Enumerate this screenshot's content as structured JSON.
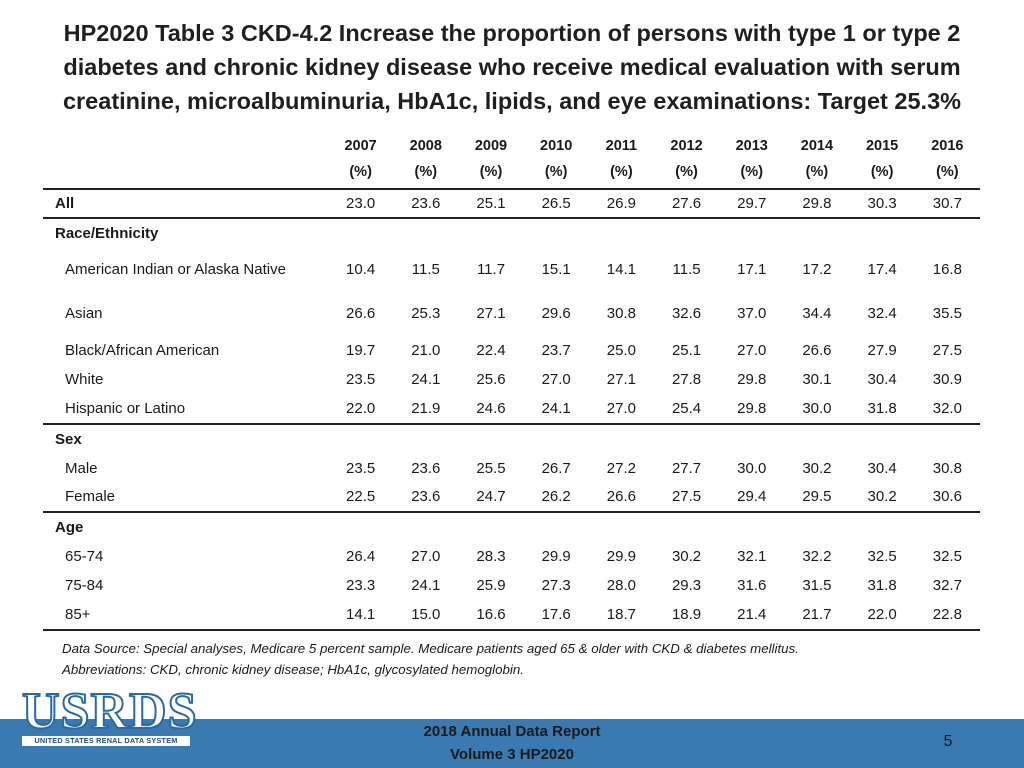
{
  "title": "HP2020 Table 3 CKD-4.2 Increase the proportion of persons with type 1 or type 2 diabetes and chronic kidney disease who receive medical evaluation with serum creatinine, microalbuminuria, HbA1c, lipids, and eye examinations: Target 25.3%",
  "table": {
    "years": [
      "2007",
      "2008",
      "2009",
      "2010",
      "2011",
      "2012",
      "2013",
      "2014",
      "2015",
      "2016"
    ],
    "unit": "(%)",
    "rows": [
      {
        "label": "All",
        "kind": "group-values",
        "values": [
          "23.0",
          "23.6",
          "25.1",
          "26.5",
          "26.9",
          "27.6",
          "29.7",
          "29.8",
          "30.3",
          "30.7"
        ]
      },
      {
        "label": "Race/Ethnicity",
        "kind": "group"
      },
      {
        "label": "American Indian or Alaska Native",
        "kind": "sub-tall",
        "values": [
          "10.4",
          "11.5",
          "11.7",
          "15.1",
          "14.1",
          "11.5",
          "17.1",
          "17.2",
          "17.4",
          "16.8"
        ]
      },
      {
        "label": "Asian",
        "kind": "sub-tall",
        "values": [
          "26.6",
          "25.3",
          "27.1",
          "29.6",
          "30.8",
          "32.6",
          "37.0",
          "34.4",
          "32.4",
          "35.5"
        ]
      },
      {
        "label": "Black/African American",
        "kind": "sub",
        "values": [
          "19.7",
          "21.0",
          "22.4",
          "23.7",
          "25.0",
          "25.1",
          "27.0",
          "26.6",
          "27.9",
          "27.5"
        ]
      },
      {
        "label": "White",
        "kind": "sub",
        "values": [
          "23.5",
          "24.1",
          "25.6",
          "27.0",
          "27.1",
          "27.8",
          "29.8",
          "30.1",
          "30.4",
          "30.9"
        ]
      },
      {
        "label": "Hispanic or Latino",
        "kind": "sub",
        "values": [
          "22.0",
          "21.9",
          "24.6",
          "24.1",
          "27.0",
          "25.4",
          "29.8",
          "30.0",
          "31.8",
          "32.0"
        ]
      },
      {
        "label": "Sex",
        "kind": "group"
      },
      {
        "label": "Male",
        "kind": "sub",
        "values": [
          "23.5",
          "23.6",
          "25.5",
          "26.7",
          "27.2",
          "27.7",
          "30.0",
          "30.2",
          "30.4",
          "30.8"
        ]
      },
      {
        "label": "Female",
        "kind": "sub",
        "values": [
          "22.5",
          "23.6",
          "24.7",
          "26.2",
          "26.6",
          "27.5",
          "29.4",
          "29.5",
          "30.2",
          "30.6"
        ]
      },
      {
        "label": "Age",
        "kind": "group"
      },
      {
        "label": "65-74",
        "kind": "sub",
        "values": [
          "26.4",
          "27.0",
          "28.3",
          "29.9",
          "29.9",
          "30.2",
          "32.1",
          "32.2",
          "32.5",
          "32.5"
        ]
      },
      {
        "label": "75-84",
        "kind": "sub",
        "values": [
          "23.3",
          "24.1",
          "25.9",
          "27.3",
          "28.0",
          "29.3",
          "31.6",
          "31.5",
          "31.8",
          "32.7"
        ]
      },
      {
        "label": "85+",
        "kind": "sub",
        "values": [
          "14.1",
          "15.0",
          "16.6",
          "17.6",
          "18.7",
          "18.9",
          "21.4",
          "21.7",
          "22.0",
          "22.8"
        ]
      }
    ]
  },
  "footnote": {
    "line1": "Data Source: Special analyses, Medicare 5 percent sample. Medicare patients aged 65 & older with CKD & diabetes mellitus.",
    "line2": "Abbreviations: CKD, chronic kidney disease; HbA1c, glycosylated hemoglobin."
  },
  "logo": {
    "text": "USRDS",
    "subtitle": "UNITED STATES RENAL DATA SYSTEM"
  },
  "footer": {
    "line1": "2018 Annual Data Report",
    "line2": "Volume 3 HP2020",
    "page": "5"
  },
  "colors": {
    "footer_bar": "#3a7ab0",
    "logo_blue": "#2a6aa3"
  }
}
